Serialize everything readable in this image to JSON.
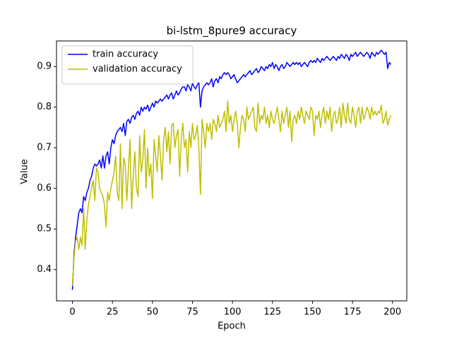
{
  "chart_data": {
    "type": "line",
    "title": "bi-lstm_8pure9 accuracy",
    "x_label": "Epoch",
    "y_label": "Value",
    "x": [
      0,
      1,
      2,
      3,
      4,
      5,
      6,
      7,
      8,
      9,
      10,
      11,
      12,
      13,
      14,
      15,
      16,
      17,
      18,
      19,
      20,
      21,
      22,
      23,
      24,
      25,
      26,
      27,
      28,
      29,
      30,
      31,
      32,
      33,
      34,
      35,
      36,
      37,
      38,
      39,
      40,
      41,
      42,
      43,
      44,
      45,
      46,
      47,
      48,
      49,
      50,
      51,
      52,
      53,
      54,
      55,
      56,
      57,
      58,
      59,
      60,
      61,
      62,
      63,
      64,
      65,
      66,
      67,
      68,
      69,
      70,
      71,
      72,
      73,
      74,
      75,
      76,
      77,
      78,
      79,
      80,
      81,
      82,
      83,
      84,
      85,
      86,
      87,
      88,
      89,
      90,
      91,
      92,
      93,
      94,
      95,
      96,
      97,
      98,
      99,
      100,
      101,
      102,
      103,
      104,
      105,
      106,
      107,
      108,
      109,
      110,
      111,
      112,
      113,
      114,
      115,
      116,
      117,
      118,
      119,
      120,
      121,
      122,
      123,
      124,
      125,
      126,
      127,
      128,
      129,
      130,
      131,
      132,
      133,
      134,
      135,
      136,
      137,
      138,
      139,
      140,
      141,
      142,
      143,
      144,
      145,
      146,
      147,
      148,
      149,
      150,
      151,
      152,
      153,
      154,
      155,
      156,
      157,
      158,
      159,
      160,
      161,
      162,
      163,
      164,
      165,
      166,
      167,
      168,
      169,
      170,
      171,
      172,
      173,
      174,
      175,
      176,
      177,
      178,
      179,
      180,
      181,
      182,
      183,
      184,
      185,
      186,
      187,
      188,
      189,
      190,
      191,
      192,
      193,
      194,
      195,
      196,
      197,
      198,
      199
    ],
    "series": [
      {
        "name": "train accuracy",
        "color": "#0000ff",
        "values": [
          0.35,
          0.44,
          0.48,
          0.51,
          0.54,
          0.55,
          0.54,
          0.58,
          0.57,
          0.59,
          0.6,
          0.62,
          0.63,
          0.65,
          0.66,
          0.655,
          0.66,
          0.67,
          0.65,
          0.68,
          0.65,
          0.68,
          0.69,
          0.66,
          0.7,
          0.72,
          0.71,
          0.73,
          0.74,
          0.745,
          0.75,
          0.74,
          0.76,
          0.73,
          0.765,
          0.77,
          0.76,
          0.775,
          0.78,
          0.77,
          0.785,
          0.79,
          0.78,
          0.8,
          0.79,
          0.8,
          0.795,
          0.805,
          0.79,
          0.8,
          0.81,
          0.8,
          0.815,
          0.81,
          0.815,
          0.82,
          0.815,
          0.82,
          0.825,
          0.83,
          0.82,
          0.83,
          0.835,
          0.82,
          0.83,
          0.84,
          0.83,
          0.835,
          0.845,
          0.85,
          0.85,
          0.84,
          0.855,
          0.85,
          0.84,
          0.86,
          0.85,
          0.845,
          0.855,
          0.86,
          0.8,
          0.84,
          0.85,
          0.855,
          0.86,
          0.855,
          0.86,
          0.87,
          0.85,
          0.865,
          0.87,
          0.86,
          0.875,
          0.87,
          0.88,
          0.885,
          0.88,
          0.885,
          0.88,
          0.87,
          0.875,
          0.88,
          0.87,
          0.86,
          0.865,
          0.87,
          0.875,
          0.88,
          0.875,
          0.88,
          0.885,
          0.89,
          0.88,
          0.885,
          0.89,
          0.895,
          0.885,
          0.89,
          0.9,
          0.895,
          0.89,
          0.9,
          0.895,
          0.905,
          0.9,
          0.91,
          0.895,
          0.905,
          0.9,
          0.89,
          0.9,
          0.905,
          0.895,
          0.9,
          0.91,
          0.905,
          0.9,
          0.905,
          0.91,
          0.905,
          0.91,
          0.905,
          0.91,
          0.9,
          0.905,
          0.91,
          0.905,
          0.9,
          0.91,
          0.915,
          0.91,
          0.915,
          0.91,
          0.92,
          0.915,
          0.91,
          0.92,
          0.915,
          0.92,
          0.925,
          0.92,
          0.915,
          0.92,
          0.925,
          0.92,
          0.915,
          0.925,
          0.92,
          0.93,
          0.925,
          0.92,
          0.93,
          0.925,
          0.915,
          0.93,
          0.925,
          0.93,
          0.935,
          0.925,
          0.93,
          0.935,
          0.93,
          0.925,
          0.93,
          0.935,
          0.93,
          0.92,
          0.935,
          0.93,
          0.925,
          0.935,
          0.93,
          0.935,
          0.94,
          0.935,
          0.93,
          0.935,
          0.895,
          0.91,
          0.905
        ]
      },
      {
        "name": "validation accuracy",
        "color": "#bfbf00",
        "values": [
          0.36,
          0.43,
          0.47,
          0.48,
          0.45,
          0.48,
          0.46,
          0.55,
          0.45,
          0.52,
          0.56,
          0.58,
          0.6,
          0.62,
          0.57,
          0.65,
          0.64,
          0.6,
          0.59,
          0.58,
          0.56,
          0.505,
          0.59,
          0.57,
          0.6,
          0.62,
          0.64,
          0.68,
          0.59,
          0.57,
          0.71,
          0.55,
          0.675,
          0.66,
          0.57,
          0.65,
          0.72,
          0.55,
          0.63,
          0.69,
          0.6,
          0.58,
          0.73,
          0.64,
          0.67,
          0.745,
          0.6,
          0.7,
          0.63,
          0.66,
          0.575,
          0.72,
          0.68,
          0.64,
          0.73,
          0.68,
          0.62,
          0.72,
          0.75,
          0.69,
          0.74,
          0.66,
          0.755,
          0.76,
          0.7,
          0.73,
          0.745,
          0.63,
          0.72,
          0.76,
          0.7,
          0.72,
          0.64,
          0.74,
          0.7,
          0.76,
          0.72,
          0.73,
          0.755,
          0.7,
          0.585,
          0.77,
          0.74,
          0.7,
          0.76,
          0.74,
          0.76,
          0.72,
          0.77,
          0.76,
          0.74,
          0.78,
          0.75,
          0.76,
          0.77,
          0.79,
          0.74,
          0.815,
          0.76,
          0.78,
          0.74,
          0.77,
          0.79,
          0.76,
          0.7,
          0.75,
          0.78,
          0.77,
          0.74,
          0.8,
          0.77,
          0.78,
          0.79,
          0.8,
          0.75,
          0.74,
          0.81,
          0.76,
          0.78,
          0.77,
          0.8,
          0.76,
          0.78,
          0.75,
          0.79,
          0.77,
          0.76,
          0.78,
          0.8,
          0.77,
          0.74,
          0.79,
          0.76,
          0.78,
          0.8,
          0.75,
          0.79,
          0.715,
          0.77,
          0.78,
          0.76,
          0.79,
          0.77,
          0.8,
          0.78,
          0.76,
          0.79,
          0.78,
          0.77,
          0.8,
          0.79,
          0.73,
          0.78,
          0.77,
          0.79,
          0.75,
          0.78,
          0.8,
          0.76,
          0.79,
          0.77,
          0.8,
          0.74,
          0.78,
          0.79,
          0.76,
          0.77,
          0.8,
          0.75,
          0.81,
          0.78,
          0.76,
          0.81,
          0.77,
          0.76,
          0.8,
          0.78,
          0.75,
          0.79,
          0.8,
          0.76,
          0.8,
          0.77,
          0.78,
          0.8,
          0.79,
          0.77,
          0.8,
          0.78,
          0.79,
          0.78,
          0.79,
          0.785,
          0.805,
          0.76,
          0.77,
          0.79,
          0.755,
          0.77,
          0.78
        ]
      }
    ],
    "xlim": [
      -9.95,
      208.95
    ],
    "ylim": [
      0.323,
      0.963
    ],
    "xticks": [
      0,
      25,
      50,
      75,
      100,
      125,
      150,
      175,
      200
    ],
    "yticks": [
      0.4,
      0.5,
      0.6,
      0.7,
      0.8,
      0.9
    ],
    "legend": "upper left"
  }
}
